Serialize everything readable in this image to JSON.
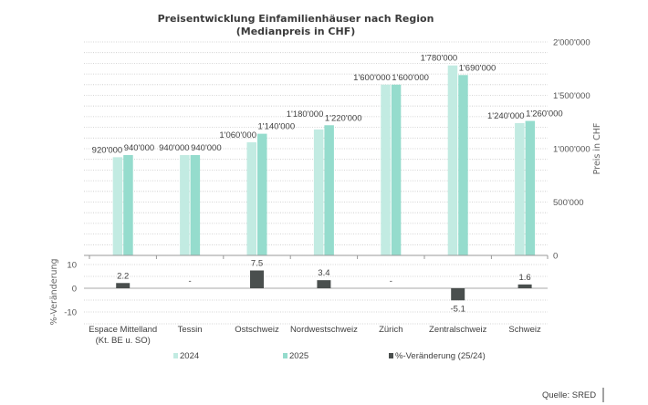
{
  "chart_data": [
    {
      "type": "bar",
      "title": "Preisentwicklung Einfamilienhäuser nach Region",
      "subtitle": "(Medianpreis in CHF)",
      "categories": [
        "Espace Mittelland\n(Kt. BE u. SO)",
        "Tessin",
        "Ostschweiz",
        "Nordwestschweiz",
        "Zürich",
        "Zentralschweiz",
        "Schweiz"
      ],
      "series": [
        {
          "name": "2024",
          "color": "#c2ebe2",
          "values": [
            920000,
            940000,
            1060000,
            1180000,
            1600000,
            1780000,
            1240000
          ],
          "labels": [
            "920'000",
            "940'000",
            "1'060'000",
            "1'180'000",
            "1'600'000",
            "1'780'000",
            "1'240'000"
          ]
        },
        {
          "name": "2025",
          "color": "#95dccd",
          "values": [
            940000,
            940000,
            1140000,
            1220000,
            1600000,
            1690000,
            1260000
          ],
          "labels": [
            "940'000",
            "940'000",
            "1'140'000",
            "1'220'000",
            "1'600'000",
            "1'690'000",
            "1'260'000"
          ]
        }
      ],
      "ylabel": "Preis in CHF",
      "yaxis_position": "right",
      "ylim": [
        0,
        2000000
      ],
      "yticks": [
        0,
        500000,
        1000000,
        1500000,
        2000000
      ],
      "ytick_labels": [
        "0",
        "500'000",
        "1'000'000",
        "1'500'000",
        "2'000'000"
      ],
      "grid": true
    },
    {
      "type": "bar",
      "categories": [
        "Espace Mittelland\n(Kt. BE u. SO)",
        "Tessin",
        "Ostschweiz",
        "Nordwestschweiz",
        "Zürich",
        "Zentralschweiz",
        "Schweiz"
      ],
      "series": [
        {
          "name": "%-Veränderung (25/24)",
          "color": "#4a4f4e",
          "values": [
            2.2,
            0,
            7.5,
            3.4,
            0,
            -5.1,
            1.6
          ],
          "labels": [
            "2.2",
            "-",
            "7.5",
            "3.4",
            "-",
            "-5.1",
            "1.6"
          ]
        }
      ],
      "ylabel": "%-Veränderung",
      "yaxis_position": "left",
      "ylim": [
        -15,
        15
      ],
      "yticks": [
        -10,
        0,
        10
      ],
      "ytick_labels": [
        "-10",
        "0",
        "10"
      ],
      "grid": true
    }
  ],
  "legend": {
    "placement": "bottom",
    "items": [
      "2024",
      "2025",
      "%-Veränderung (25/24)"
    ]
  },
  "source": "Quelle: SRED"
}
